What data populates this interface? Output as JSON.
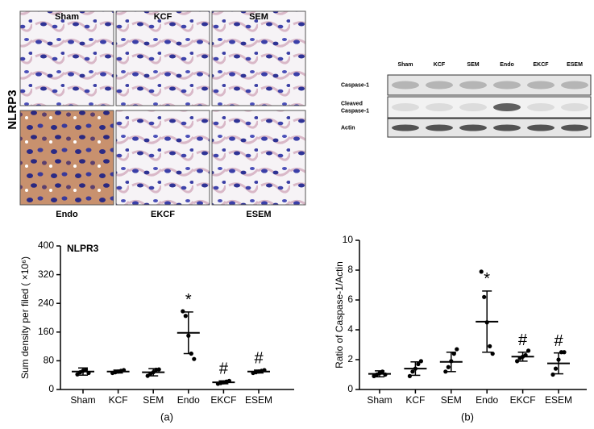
{
  "figure": {
    "panel_label": "NLRP3",
    "histology_labels": [
      "Sham",
      "KCF",
      "SEM",
      "Endo",
      "EKCF",
      "ESEM"
    ],
    "blot": {
      "lanes": [
        "Sham",
        "KCF",
        "SEM",
        "Endo",
        "EKCF",
        "ESEM"
      ],
      "rows": [
        "Caspase-1",
        "Cleaved\nCaspase-1",
        "Actin"
      ]
    }
  },
  "chart_data": [
    {
      "type": "dot",
      "caption": "(a)",
      "title": "NLPR3",
      "y_label": "Sum density per filed ( ×10⁶)",
      "categories": [
        "Sham",
        "KCF",
        "SEM",
        "Endo",
        "EKCF",
        "ESEM"
      ],
      "points": [
        [
          42,
          48,
          52,
          55,
          46
        ],
        [
          46,
          48,
          50,
          52,
          54
        ],
        [
          38,
          44,
          48,
          55,
          56
        ],
        [
          218,
          205,
          150,
          100,
          85
        ],
        [
          16,
          18,
          20,
          22,
          24
        ],
        [
          46,
          48,
          50,
          52,
          54
        ]
      ],
      "mean": [
        50,
        50,
        48,
        158,
        20,
        50
      ],
      "sd": [
        10,
        4,
        10,
        58,
        4,
        4
      ],
      "annotations": [
        null,
        null,
        null,
        "*",
        "#",
        "#"
      ],
      "ylim": [
        0,
        400
      ],
      "yticks": [
        0,
        80,
        160,
        240,
        320,
        400
      ],
      "color": "#000000"
    },
    {
      "type": "dot",
      "caption": "(b)",
      "y_label": "Ratio of Caspase-1/Actin",
      "categories": [
        "Sham",
        "KCF",
        "SEM",
        "Endo",
        "EKCF",
        "ESEM"
      ],
      "points": [
        [
          0.9,
          1.0,
          1.1,
          1.2,
          1.0
        ],
        [
          0.9,
          1.2,
          1.4,
          1.7,
          1.9
        ],
        [
          1.2,
          1.5,
          1.9,
          2.4,
          2.7
        ],
        [
          7.9,
          6.2,
          4.5,
          2.9,
          2.4
        ],
        [
          1.9,
          2.1,
          2.2,
          2.3,
          2.6
        ],
        [
          1.0,
          1.4,
          2.0,
          2.5,
          2.5
        ]
      ],
      "mean": [
        1.05,
        1.4,
        1.85,
        4.55,
        2.2,
        1.75
      ],
      "sd": [
        0.2,
        0.45,
        0.65,
        2.05,
        0.3,
        0.7
      ],
      "annotations": [
        null,
        null,
        null,
        "*",
        "#",
        "#"
      ],
      "ylim": [
        0,
        10
      ],
      "yticks": [
        0,
        2,
        4,
        6,
        8,
        10
      ],
      "color": "#000000"
    }
  ]
}
